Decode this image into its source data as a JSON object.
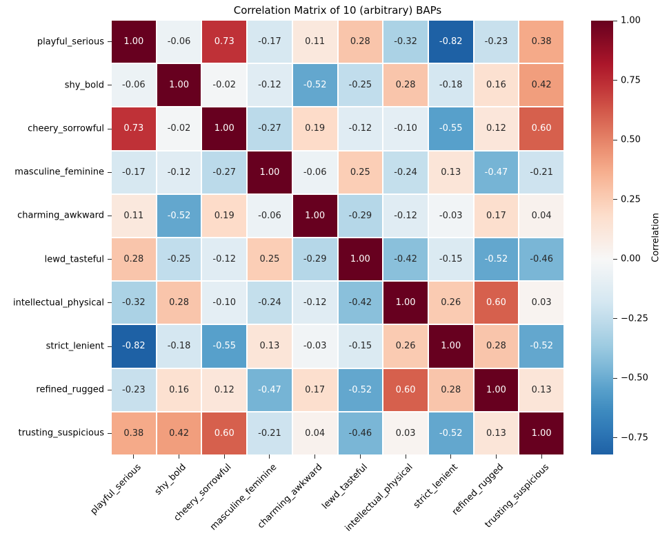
{
  "chart_data": {
    "type": "heatmap",
    "title": "Correlation Matrix of 10 (arbitrary) BAPs",
    "labels": [
      "playful_serious",
      "shy_bold",
      "cheery_sorrowful",
      "masculine_feminine",
      "charming_awkward",
      "lewd_tasteful",
      "intellectual_physical",
      "strict_lenient",
      "refined_rugged",
      "trusting_suspicious"
    ],
    "matrix": [
      [
        1.0,
        -0.06,
        0.73,
        -0.17,
        0.11,
        0.28,
        -0.32,
        -0.82,
        -0.23,
        0.38
      ],
      [
        -0.06,
        1.0,
        -0.02,
        -0.12,
        -0.52,
        -0.25,
        0.28,
        -0.18,
        0.16,
        0.42
      ],
      [
        0.73,
        -0.02,
        1.0,
        -0.27,
        0.19,
        -0.12,
        -0.1,
        -0.55,
        0.12,
        0.6
      ],
      [
        -0.17,
        -0.12,
        -0.27,
        1.0,
        -0.06,
        0.25,
        -0.24,
        0.13,
        -0.47,
        -0.21
      ],
      [
        0.11,
        -0.52,
        0.19,
        -0.06,
        1.0,
        -0.29,
        -0.12,
        -0.03,
        0.17,
        0.04
      ],
      [
        0.28,
        -0.25,
        -0.12,
        0.25,
        -0.29,
        1.0,
        -0.42,
        -0.15,
        -0.52,
        -0.46
      ],
      [
        -0.32,
        0.28,
        -0.1,
        -0.24,
        -0.12,
        -0.42,
        1.0,
        0.26,
        0.6,
        0.03
      ],
      [
        -0.82,
        -0.18,
        -0.55,
        0.13,
        -0.03,
        -0.15,
        0.26,
        1.0,
        0.28,
        -0.52
      ],
      [
        -0.23,
        0.16,
        0.12,
        -0.47,
        0.17,
        -0.52,
        0.6,
        0.28,
        1.0,
        0.13
      ],
      [
        0.38,
        0.42,
        0.6,
        -0.21,
        0.04,
        -0.46,
        0.03,
        -0.52,
        0.13,
        1.0
      ]
    ],
    "annotations": true,
    "value_decimals": 2,
    "x_tick_rotation": 45,
    "grid_line_color": "#ffffff",
    "annotation_color_dark": "#262626",
    "annotation_color_light": "#ffffff",
    "colormap": {
      "name": "RdBu_r",
      "anchors": [
        "#053061",
        "#2166ac",
        "#4393c4",
        "#92c5de",
        "#d1e5f0",
        "#f7f7f7",
        "#fddbc7",
        "#f4a582",
        "#d6604d",
        "#b2182b",
        "#67001f"
      ]
    },
    "color_scale": {
      "center": 0,
      "norm_min": -1.0,
      "norm_max": 1.0,
      "display_min": -0.82,
      "display_max": 1.0
    },
    "colorbar": {
      "label": "Correlation",
      "tick_values": [
        1.0,
        0.75,
        0.5,
        0.25,
        0.0,
        -0.25,
        -0.5,
        -0.75
      ],
      "tick_labels": [
        "1.00",
        "0.75",
        "0.50",
        "0.25",
        "0.00",
        "−0.25",
        "−0.50",
        "−0.75"
      ]
    }
  }
}
